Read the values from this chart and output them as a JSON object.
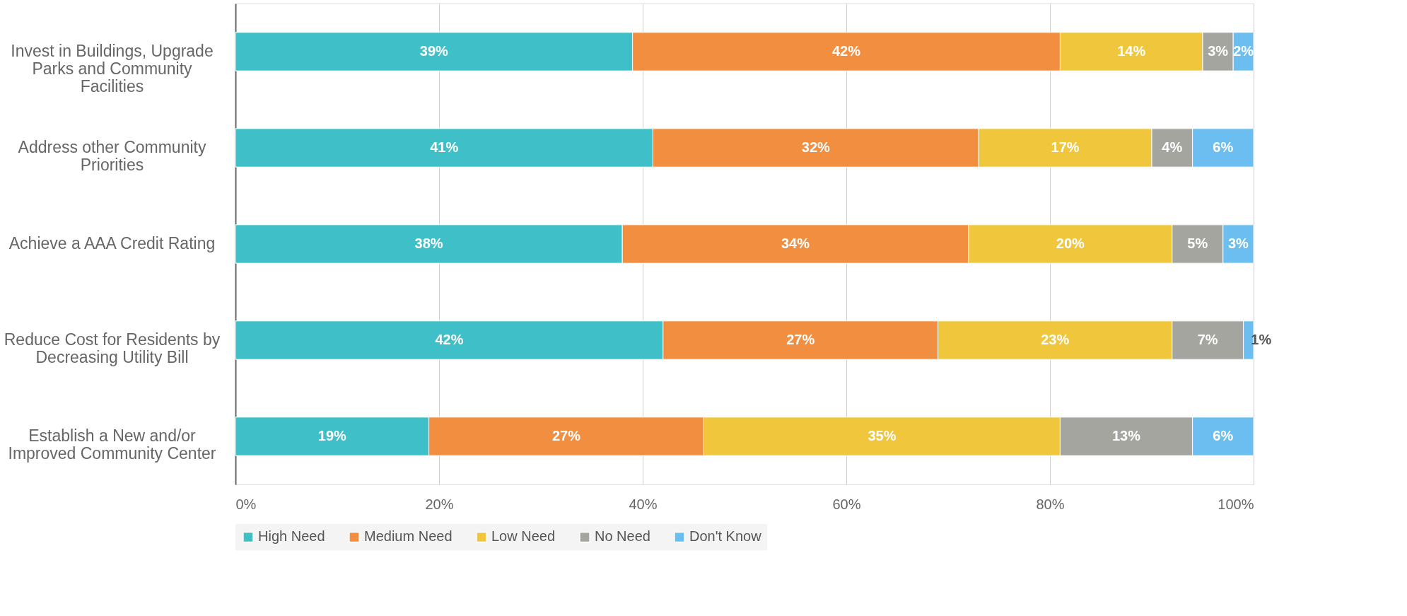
{
  "chart_data": {
    "type": "bar",
    "orientation": "horizontal",
    "stacked": true,
    "categories": [
      "Invest in Buildings, Upgrade Parks and Community Facilities",
      "Address other Community Priorities",
      "Achieve a AAA Credit Rating",
      "Reduce Cost for Residents by Decreasing Utility Bill",
      "Establish a New and/or Improved Community Center"
    ],
    "series": [
      {
        "name": "High Need",
        "color": "#3fc0c8",
        "values": [
          39,
          41,
          38,
          42,
          19
        ],
        "value_labels": [
          "39%",
          "41%",
          "38%",
          "42%",
          "19%"
        ]
      },
      {
        "name": "Medium Need",
        "color": "#f28e3f",
        "values": [
          42,
          32,
          34,
          27,
          27
        ],
        "value_labels": [
          "42%",
          "32%",
          "34%",
          "27%",
          "27%"
        ]
      },
      {
        "name": "Low Need",
        "color": "#f0c63c",
        "values": [
          14,
          17,
          20,
          23,
          35
        ],
        "value_labels": [
          "14%",
          "17%",
          "20%",
          "23%",
          "35%"
        ]
      },
      {
        "name": "No Need",
        "color": "#a5a5a0",
        "values": [
          3,
          4,
          5,
          7,
          13
        ],
        "value_labels": [
          "3%",
          "4%",
          "5%",
          "7%",
          "13%"
        ]
      },
      {
        "name": "Don't Know",
        "color": "#6cbef0",
        "values": [
          2,
          6,
          3,
          1,
          6
        ],
        "value_labels": [
          "2%",
          "6%",
          "3%",
          "1%",
          "6%"
        ]
      }
    ],
    "xlim": [
      0,
      100
    ],
    "xticks": [
      {
        "value": 0,
        "label": "0%"
      },
      {
        "value": 20,
        "label": "20%"
      },
      {
        "value": 40,
        "label": "40%"
      },
      {
        "value": 60,
        "label": "60%"
      },
      {
        "value": 80,
        "label": "80%"
      },
      {
        "value": 100,
        "label": "100%"
      }
    ],
    "grid": "x",
    "legend": "bottom"
  }
}
